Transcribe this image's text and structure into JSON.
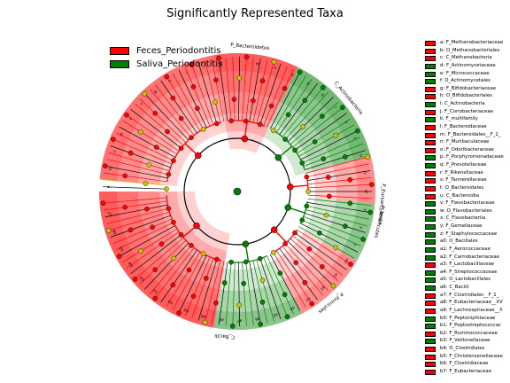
{
  "chart_data": {
    "type": "cladogram",
    "title": "Significantly Represented Taxa",
    "legend": [
      {
        "label": "Feces_Periodontitis",
        "color": "#ff0000"
      },
      {
        "label": "Saliva_Periodontitis",
        "color": "#008000"
      }
    ],
    "colors": {
      "feces": "#ff0000",
      "saliva": "#008000",
      "neutral": "#c8c800"
    },
    "sector_labels": [
      {
        "text": "P_Bacteroidetes",
        "angle": -85,
        "group": "feces"
      },
      {
        "text": "C_Actinobacteria",
        "angle": -40,
        "group": "saliva"
      },
      {
        "text": "P_Euryarchaeota",
        "angle": 5,
        "group": "feces"
      },
      {
        "text": "P_Tenericutes",
        "angle": 12,
        "group": "feces"
      },
      {
        "text": "P_Firmicutes",
        "angle": 50,
        "group": "saliva"
      },
      {
        "text": "C_Bacilli",
        "angle": 95,
        "group": "saliva"
      }
    ],
    "key_entries": [
      {
        "label": "a: F_Methanobacteriaceae",
        "group": "feces"
      },
      {
        "label": "b: O_Methanobacteriales",
        "group": "feces"
      },
      {
        "label": "c: C_Methanobacteria",
        "group": "feces"
      },
      {
        "label": "d: F_Actinomycetaceae",
        "group": "saliva"
      },
      {
        "label": "e: F_Micrococcaceae",
        "group": "saliva"
      },
      {
        "label": "f: O_Actinomycetales",
        "group": "saliva"
      },
      {
        "label": "g: F_Bifidobacteriaceae",
        "group": "feces"
      },
      {
        "label": "h: O_Bifidobacteriales",
        "group": "feces"
      },
      {
        "label": "i: C_Actinobacteria",
        "group": "saliva"
      },
      {
        "label": "j: F_Coriobacteriaceae",
        "group": "feces"
      },
      {
        "label": "k: F_multifamily",
        "group": "saliva"
      },
      {
        "label": "l: F_Bacteroidaceae",
        "group": "feces"
      },
      {
        "label": "m: F_Bacteroidales__F_2_",
        "group": "feces"
      },
      {
        "label": "n: F_Muribaculaceae",
        "group": "feces"
      },
      {
        "label": "o: F_Odoribacteraceae",
        "group": "feces"
      },
      {
        "label": "p: F_Porphyromonadaceae",
        "group": "saliva"
      },
      {
        "label": "q: F_Prevotellaceae",
        "group": "saliva"
      },
      {
        "label": "r: F_Rikenellaceae",
        "group": "feces"
      },
      {
        "label": "s: F_Tannerellaceae",
        "group": "feces"
      },
      {
        "label": "t: O_Bacteroidales",
        "group": "feces"
      },
      {
        "label": "u: C_Bacteroidia",
        "group": "feces"
      },
      {
        "label": "v: F_Flavobacteriaceae",
        "group": "saliva"
      },
      {
        "label": "w: O_Flavobacteriales",
        "group": "saliva"
      },
      {
        "label": "x: C_Flavobacteriia",
        "group": "saliva"
      },
      {
        "label": "y: F_Gemellaceae",
        "group": "saliva"
      },
      {
        "label": "z: F_Staphylococcaceae",
        "group": "saliva"
      },
      {
        "label": "a0: O_Bacillales",
        "group": "saliva"
      },
      {
        "label": "a1: F_Aerococcaceae",
        "group": "saliva"
      },
      {
        "label": "a2: F_Carnobacteriaceae",
        "group": "saliva"
      },
      {
        "label": "a3: F_Lactobacillaceae",
        "group": "feces"
      },
      {
        "label": "a4: F_Streptococcaceae",
        "group": "saliva"
      },
      {
        "label": "a5: O_Lactobacillales",
        "group": "saliva"
      },
      {
        "label": "a6: C_Bacilli",
        "group": "saliva"
      },
      {
        "label": "a7: F_Clostridiales__F_1_",
        "group": "feces"
      },
      {
        "label": "a8: F_Eubacteriaceae__XV",
        "group": "feces"
      },
      {
        "label": "a9: F_Lachnospiraceae__X",
        "group": "feces"
      },
      {
        "label": "b0: F_Peptoniphilaceae",
        "group": "saliva"
      },
      {
        "label": "b1: F_Peptostreptococcac",
        "group": "saliva"
      },
      {
        "label": "b2: F_Ruminococcaceae",
        "group": "feces"
      },
      {
        "label": "b3: F_Veillonellaceae",
        "group": "saliva"
      },
      {
        "label": "b4: O_Clostridiales",
        "group": "feces"
      },
      {
        "label": "b5: F_Christensenellaceae",
        "group": "feces"
      },
      {
        "label": "b6: F_Clostridiaceae",
        "group": "feces"
      },
      {
        "label": "b7: F_Eubacteriaceae",
        "group": "feces"
      }
    ],
    "highlight_sectors": [
      {
        "start": -175,
        "end": -100,
        "level": 3,
        "group": "feces"
      },
      {
        "start": -100,
        "end": -64,
        "level": 2,
        "group": "feces"
      },
      {
        "start": -64,
        "end": -15,
        "level": 3,
        "group": "saliva"
      },
      {
        "start": -15,
        "end": 5,
        "level": 4,
        "group": "feces"
      },
      {
        "start": 5,
        "end": 30,
        "level": 4,
        "group": "saliva"
      },
      {
        "start": 30,
        "end": 62,
        "level": 4,
        "group": "feces"
      },
      {
        "start": 62,
        "end": 100,
        "level": 4,
        "group": "saliva"
      },
      {
        "start": 100,
        "end": 180,
        "level": 2,
        "group": "feces"
      }
    ],
    "node_labels": [
      "a",
      "b",
      "c",
      "d",
      "e",
      "f",
      "g",
      "h",
      "i",
      "j",
      "k",
      "l",
      "m",
      "n",
      "o",
      "p",
      "q",
      "r",
      "s",
      "t",
      "u",
      "v",
      "w",
      "x",
      "y",
      "z",
      "a0",
      "a1",
      "a2",
      "a3",
      "a4",
      "a5",
      "a6",
      "a7",
      "a8",
      "a9",
      "b0",
      "b1",
      "b2",
      "b3",
      "b4",
      "b5",
      "b6",
      "b7"
    ]
  }
}
